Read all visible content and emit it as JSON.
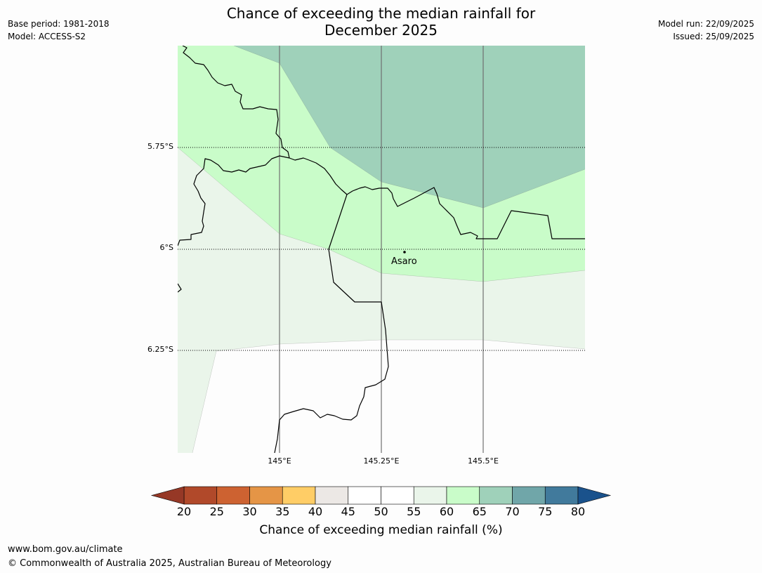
{
  "header": {
    "title_line1": "Chance of exceeding the median rainfall for",
    "title_line2": "December 2025",
    "base_period": "Base period: 1981-2018",
    "model": "Model: ACCESS-S2",
    "model_run": "Model run: 22/09/2025",
    "issued": "Issued: 25/09/2025"
  },
  "map": {
    "lat_labels": [
      "5.75°S",
      "6°S",
      "6.25°S"
    ],
    "lon_labels": [
      "145°E",
      "145.25°E",
      "145.5°E"
    ],
    "places": [
      {
        "name": "Asaro",
        "lon": 145.31,
        "lat": -6.01
      }
    ],
    "zones": [
      {
        "range": "65-70",
        "color": "#9fd1ba"
      },
      {
        "range": "60-65",
        "color": "#c9fcc9"
      },
      {
        "range": "55-60",
        "color": "#eaf5ea"
      },
      {
        "range": "50-55",
        "color": "#fdfdfd"
      }
    ]
  },
  "legend": {
    "title": "Chance of exceeding median rainfall (%)",
    "ticks": [
      "20",
      "25",
      "30",
      "35",
      "40",
      "45",
      "50",
      "55",
      "60",
      "65",
      "70",
      "75",
      "80"
    ],
    "bins": [
      {
        "range": "20-25",
        "color": "#b1492a"
      },
      {
        "range": "25-30",
        "color": "#cd6231"
      },
      {
        "range": "30-35",
        "color": "#e59546"
      },
      {
        "range": "35-40",
        "color": "#ffcd66"
      },
      {
        "range": "40-45",
        "color": "#ece8e5"
      },
      {
        "range": "45-50",
        "color": "#ffffff"
      },
      {
        "range": "50-55",
        "color": "#ffffff"
      },
      {
        "range": "55-60",
        "color": "#eaf5ea"
      },
      {
        "range": "60-65",
        "color": "#c9fcc9"
      },
      {
        "range": "65-70",
        "color": "#9fd1ba"
      },
      {
        "range": "70-75",
        "color": "#70a6a9"
      },
      {
        "range": "75-80",
        "color": "#417a9c"
      }
    ],
    "low_extension_color": "#963826",
    "high_extension_color": "#1a528c"
  },
  "footer": {
    "url": "www.bom.gov.au/climate",
    "copyright": "© Commonwealth of Australia 2025, Australian Bureau of Meteorology"
  }
}
